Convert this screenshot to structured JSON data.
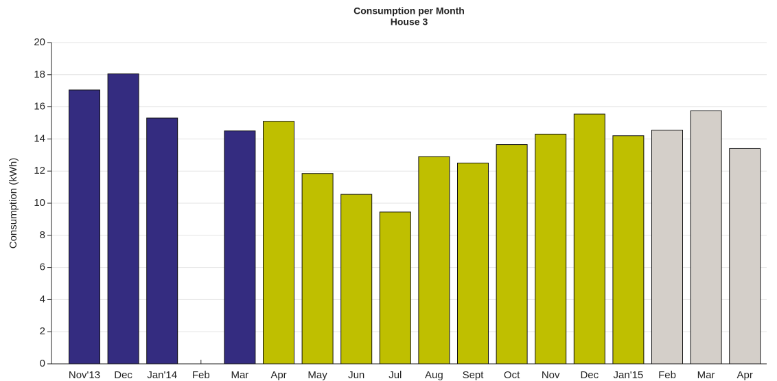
{
  "chart_data": {
    "type": "bar",
    "title": "Consumption per Month",
    "subtitle": "House 3",
    "y_label": "Consumption (kWh)",
    "categories": [
      "Nov'13",
      "Dec",
      "Jan'14",
      "Feb",
      "Mar",
      "Apr",
      "May",
      "Jun",
      "Jul",
      "Aug",
      "Sept",
      "Oct",
      "Nov",
      "Dec",
      "Jan'15",
      "Feb",
      "Mar",
      "Apr"
    ],
    "values": [
      17.05,
      18.05,
      15.3,
      null,
      14.5,
      15.1,
      11.85,
      10.55,
      9.45,
      12.9,
      12.5,
      13.65,
      14.3,
      15.55,
      14.2,
      14.55,
      15.75,
      13.4
    ],
    "colors": [
      "#342c80",
      "#342c80",
      "#342c80",
      "#342c80",
      "#342c80",
      "#bfbf00",
      "#bfbf00",
      "#bfbf00",
      "#bfbf00",
      "#bfbf00",
      "#bfbf00",
      "#bfbf00",
      "#bfbf00",
      "#bfbf00",
      "#bfbf00",
      "#d4cfc9",
      "#d4cfc9",
      "#d4cfc9"
    ],
    "ylim": [
      0,
      20
    ],
    "yticks": [
      0,
      2,
      4,
      6,
      8,
      10,
      12,
      14,
      16,
      18,
      20
    ],
    "grid": true
  }
}
